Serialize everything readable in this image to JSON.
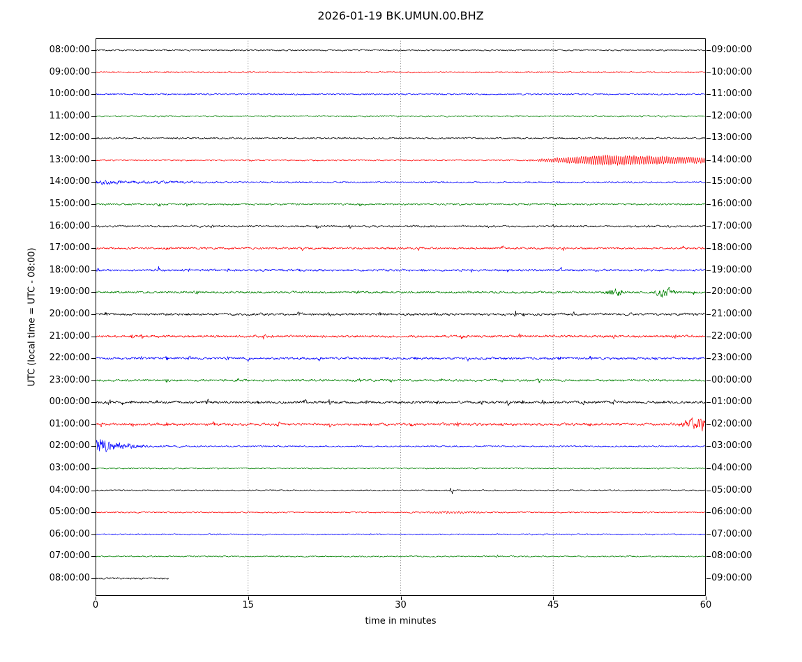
{
  "colors": {
    "black": "#000000",
    "red": "#ff0000",
    "blue": "#0000ff",
    "green": "#008000"
  },
  "chart_data": {
    "type": "line",
    "subtype": "helicorder-dayplot",
    "title": "2026-01-19 BK.UMUN.00.BHZ",
    "ylabel": "UTC (local time = UTC - 08:00)",
    "xlabel": "time in minutes",
    "x_ticks": [
      "0",
      "15",
      "30",
      "45",
      "60"
    ],
    "x_range_minutes": [
      0,
      60
    ],
    "minutes_per_row": 60,
    "grid": {
      "vertical_dotted_at_minutes": [
        15,
        30,
        45
      ]
    },
    "legend": "none",
    "rows": [
      {
        "left": "08:00:00",
        "right": "09:00:00",
        "color": "black",
        "amp": 0.9,
        "events": []
      },
      {
        "left": "09:00:00",
        "right": "10:00:00",
        "color": "red",
        "amp": 0.9,
        "events": []
      },
      {
        "left": "10:00:00",
        "right": "11:00:00",
        "color": "blue",
        "amp": 0.9,
        "events": []
      },
      {
        "left": "11:00:00",
        "right": "12:00:00",
        "color": "green",
        "amp": 0.9,
        "events": []
      },
      {
        "left": "12:00:00",
        "right": "13:00:00",
        "color": "black",
        "amp": 1.0,
        "events": []
      },
      {
        "left": "13:00:00",
        "right": "14:00:00",
        "color": "red",
        "amp": 0.9,
        "events": [
          {
            "kind": "spike",
            "t0": 15.2,
            "amp": 1.4
          },
          {
            "kind": "ring",
            "t0": 42,
            "t1": 60,
            "amp": 7,
            "wl": 2.0
          }
        ]
      },
      {
        "left": "14:00:00",
        "right": "15:00:00",
        "color": "blue",
        "amp": 0.9,
        "events": [
          {
            "kind": "noise",
            "t0": 0,
            "t1": 14,
            "amp": 1.6,
            "env": "decay"
          },
          {
            "kind": "spike",
            "t0": 45.5,
            "amp": 1.4
          }
        ]
      },
      {
        "left": "15:00:00",
        "right": "16:00:00",
        "color": "green",
        "amp": 1.1,
        "events": [
          {
            "kind": "spike",
            "t0": 6.3,
            "amp": 2.5
          },
          {
            "kind": "spike",
            "t0": 9.0,
            "amp": 2.2
          },
          {
            "kind": "spike",
            "t0": 26.0,
            "amp": 1.5
          },
          {
            "kind": "spike",
            "t0": 45.3,
            "amp": 2.5
          }
        ]
      },
      {
        "left": "16:00:00",
        "right": "17:00:00",
        "color": "black",
        "amp": 1.2,
        "events": [
          {
            "kind": "spike",
            "t0": 11.5,
            "amp": 2.6
          },
          {
            "kind": "spike",
            "t0": 21.8,
            "amp": 2.4
          },
          {
            "kind": "spike",
            "t0": 25.0,
            "amp": 2.2
          },
          {
            "kind": "spike",
            "t0": 38.5,
            "amp": 2.4
          },
          {
            "kind": "spike",
            "t0": 45.0,
            "amp": 2.0
          },
          {
            "kind": "spike",
            "t0": 54.5,
            "amp": 1.8
          }
        ]
      },
      {
        "left": "17:00:00",
        "right": "18:00:00",
        "color": "red",
        "amp": 1.2,
        "events": [
          {
            "kind": "spike",
            "t0": 7.0,
            "amp": 2.2
          },
          {
            "kind": "spike",
            "t0": 20.3,
            "amp": 2.6
          },
          {
            "kind": "spike",
            "t0": 31.8,
            "amp": 2.4
          },
          {
            "kind": "spike",
            "t0": 40.0,
            "amp": 2.2
          },
          {
            "kind": "spike",
            "t0": 46.0,
            "amp": 2.4
          },
          {
            "kind": "spike",
            "t0": 57.8,
            "amp": 2.2
          }
        ]
      },
      {
        "left": "18:00:00",
        "right": "19:00:00",
        "color": "blue",
        "amp": 1.3,
        "events": [
          {
            "kind": "spike",
            "t0": 0.3,
            "amp": 3.0
          },
          {
            "kind": "spike",
            "t0": 6.2,
            "amp": 3.0
          },
          {
            "kind": "spike",
            "t0": 9.2,
            "amp": 2.4
          },
          {
            "kind": "spike",
            "t0": 13.0,
            "amp": 2.2
          },
          {
            "kind": "spike",
            "t0": 20.0,
            "amp": 2.0
          },
          {
            "kind": "spike",
            "t0": 32.2,
            "amp": 3.6
          },
          {
            "kind": "spike",
            "t0": 37.0,
            "amp": 2.2
          },
          {
            "kind": "spike",
            "t0": 40.5,
            "amp": 2.0
          },
          {
            "kind": "spike",
            "t0": 45.8,
            "amp": 2.6
          }
        ]
      },
      {
        "left": "19:00:00",
        "right": "20:00:00",
        "color": "green",
        "amp": 1.3,
        "events": [
          {
            "kind": "spike",
            "t0": 10.0,
            "amp": 2.0
          },
          {
            "kind": "spike",
            "t0": 25.8,
            "amp": 2.0
          },
          {
            "kind": "noise",
            "t0": 49.5,
            "t1": 52.5,
            "amp": 3.4
          },
          {
            "kind": "noise",
            "t0": 54.5,
            "t1": 57.5,
            "amp": 4.0
          },
          {
            "kind": "spike",
            "t0": 58.8,
            "amp": 2.5
          }
        ]
      },
      {
        "left": "20:00:00",
        "right": "21:00:00",
        "color": "black",
        "amp": 1.4,
        "events": [
          {
            "kind": "spike",
            "t0": 1.0,
            "amp": 3.0
          },
          {
            "kind": "spike",
            "t0": 9.2,
            "amp": 2.6
          },
          {
            "kind": "spike",
            "t0": 20.0,
            "amp": 2.6
          },
          {
            "kind": "spike",
            "t0": 23.0,
            "amp": 2.4
          },
          {
            "kind": "spike",
            "t0": 28.0,
            "amp": 2.6
          },
          {
            "kind": "spike",
            "t0": 33.5,
            "amp": 2.2
          },
          {
            "kind": "spike",
            "t0": 41.3,
            "amp": 4.2
          },
          {
            "kind": "spike",
            "t0": 42.1,
            "amp": 3.2
          },
          {
            "kind": "spike",
            "t0": 47.0,
            "amp": 2.4
          },
          {
            "kind": "spike",
            "t0": 54.0,
            "amp": 2.4
          }
        ]
      },
      {
        "left": "21:00:00",
        "right": "22:00:00",
        "color": "red",
        "amp": 1.4,
        "events": [
          {
            "kind": "spike",
            "t0": 3.6,
            "amp": 3.4
          },
          {
            "kind": "spike",
            "t0": 4.6,
            "amp": 3.0
          },
          {
            "kind": "spike",
            "t0": 16.6,
            "amp": 3.6
          },
          {
            "kind": "spike",
            "t0": 36.0,
            "amp": 2.4
          },
          {
            "kind": "spike",
            "t0": 41.7,
            "amp": 2.6
          },
          {
            "kind": "spike",
            "t0": 51.0,
            "amp": 2.8
          },
          {
            "kind": "spike",
            "t0": 57.0,
            "amp": 2.2
          }
        ]
      },
      {
        "left": "22:00:00",
        "right": "23:00:00",
        "color": "blue",
        "amp": 1.4,
        "events": [
          {
            "kind": "spike",
            "t0": 4.6,
            "amp": 2.6
          },
          {
            "kind": "spike",
            "t0": 7.0,
            "amp": 3.4
          },
          {
            "kind": "spike",
            "t0": 9.2,
            "amp": 2.6
          },
          {
            "kind": "spike",
            "t0": 13.0,
            "amp": 2.4
          },
          {
            "kind": "spike",
            "t0": 15.0,
            "amp": 2.6
          },
          {
            "kind": "spike",
            "t0": 22.0,
            "amp": 2.4
          },
          {
            "kind": "spike",
            "t0": 31.5,
            "amp": 2.6
          },
          {
            "kind": "spike",
            "t0": 36.6,
            "amp": 2.4
          },
          {
            "kind": "spike",
            "t0": 45.6,
            "amp": 4.0
          },
          {
            "kind": "spike",
            "t0": 48.7,
            "amp": 4.0
          },
          {
            "kind": "spike",
            "t0": 55.0,
            "amp": 2.6
          }
        ]
      },
      {
        "left": "23:00:00",
        "right": "00:00:00",
        "color": "green",
        "amp": 1.3,
        "events": [
          {
            "kind": "spike",
            "t0": 7.0,
            "amp": 3.2
          },
          {
            "kind": "spike",
            "t0": 14.0,
            "amp": 2.4
          },
          {
            "kind": "spike",
            "t0": 26.0,
            "amp": 2.4
          },
          {
            "kind": "spike",
            "t0": 29.0,
            "amp": 2.2
          },
          {
            "kind": "spike",
            "t0": 34.0,
            "amp": 2.4
          },
          {
            "kind": "spike",
            "t0": 40.0,
            "amp": 2.4
          },
          {
            "kind": "spike",
            "t0": 43.6,
            "amp": 3.4
          }
        ]
      },
      {
        "left": "00:00:00",
        "right": "01:00:00",
        "color": "black",
        "amp": 1.5,
        "events": [
          {
            "kind": "spike",
            "t0": 1.4,
            "amp": 3.0
          },
          {
            "kind": "spike",
            "t0": 2.6,
            "amp": 3.2
          },
          {
            "kind": "spike",
            "t0": 3.6,
            "amp": 2.8
          },
          {
            "kind": "spike",
            "t0": 6.0,
            "amp": 2.6
          },
          {
            "kind": "spike",
            "t0": 11.0,
            "amp": 3.6
          },
          {
            "kind": "spike",
            "t0": 16.0,
            "amp": 2.6
          },
          {
            "kind": "spike",
            "t0": 20.6,
            "amp": 2.8
          },
          {
            "kind": "spike",
            "t0": 23.0,
            "amp": 2.6
          },
          {
            "kind": "spike",
            "t0": 26.6,
            "amp": 2.8
          },
          {
            "kind": "spike",
            "t0": 30.0,
            "amp": 2.6
          },
          {
            "kind": "spike",
            "t0": 33.6,
            "amp": 2.8
          },
          {
            "kind": "spike",
            "t0": 38.0,
            "amp": 2.6
          },
          {
            "kind": "spike",
            "t0": 40.6,
            "amp": 3.8
          },
          {
            "kind": "spike",
            "t0": 42.0,
            "amp": 3.0
          },
          {
            "kind": "spike",
            "t0": 44.0,
            "amp": 3.6
          },
          {
            "kind": "spike",
            "t0": 48.0,
            "amp": 2.6
          },
          {
            "kind": "spike",
            "t0": 51.0,
            "amp": 2.8
          },
          {
            "kind": "spike",
            "t0": 56.0,
            "amp": 2.4
          }
        ]
      },
      {
        "left": "01:00:00",
        "right": "02:00:00",
        "color": "red",
        "amp": 1.5,
        "events": [
          {
            "kind": "spike",
            "t0": 0.6,
            "amp": 2.8
          },
          {
            "kind": "spike",
            "t0": 3.6,
            "amp": 2.6
          },
          {
            "kind": "spike",
            "t0": 7.0,
            "amp": 2.6
          },
          {
            "kind": "spike",
            "t0": 11.6,
            "amp": 3.4
          },
          {
            "kind": "spike",
            "t0": 18.0,
            "amp": 2.6
          },
          {
            "kind": "spike",
            "t0": 23.0,
            "amp": 2.8
          },
          {
            "kind": "spike",
            "t0": 27.0,
            "amp": 2.6
          },
          {
            "kind": "spike",
            "t0": 31.0,
            "amp": 2.6
          },
          {
            "kind": "spike",
            "t0": 35.6,
            "amp": 3.2
          },
          {
            "kind": "spike",
            "t0": 40.0,
            "amp": 2.6
          },
          {
            "kind": "spike",
            "t0": 48.6,
            "amp": 3.8
          },
          {
            "kind": "grow",
            "t0": 57.2,
            "t1": 60,
            "amp": 9.0
          }
        ]
      },
      {
        "left": "02:00:00",
        "right": "03:00:00",
        "color": "blue",
        "amp": 0.9,
        "events": [
          {
            "kind": "decay",
            "t0": 0,
            "amp": 9.0,
            "tau": 1.6
          },
          {
            "kind": "noise",
            "t0": 0,
            "t1": 8,
            "amp": 1.8,
            "env": "decay"
          },
          {
            "kind": "spike",
            "t0": 8.3,
            "amp": 1.2
          }
        ]
      },
      {
        "left": "03:00:00",
        "right": "04:00:00",
        "color": "green",
        "amp": 0.8,
        "events": []
      },
      {
        "left": "04:00:00",
        "right": "05:00:00",
        "color": "black",
        "amp": 0.75,
        "events": [
          {
            "kind": "spike",
            "t0": 35.0,
            "amp": 6.0,
            "w": 0.25
          }
        ]
      },
      {
        "left": "05:00:00",
        "right": "06:00:00",
        "color": "red",
        "amp": 0.8,
        "events": [
          {
            "kind": "ring",
            "t0": 31.5,
            "t1": 38,
            "amp": 1.4,
            "wl": 1.6
          }
        ]
      },
      {
        "left": "06:00:00",
        "right": "07:00:00",
        "color": "blue",
        "amp": 0.8,
        "events": [
          {
            "kind": "spike",
            "t0": 27.0,
            "amp": 1.2
          }
        ]
      },
      {
        "left": "07:00:00",
        "right": "08:00:00",
        "color": "green",
        "amp": 0.8,
        "events": [
          {
            "kind": "spike",
            "t0": 39.5,
            "amp": 1.6
          }
        ]
      },
      {
        "left": "08:00:00",
        "right": "09:00:00",
        "color": "black",
        "amp": 1.0,
        "t_end": 7.2,
        "events": []
      }
    ]
  }
}
